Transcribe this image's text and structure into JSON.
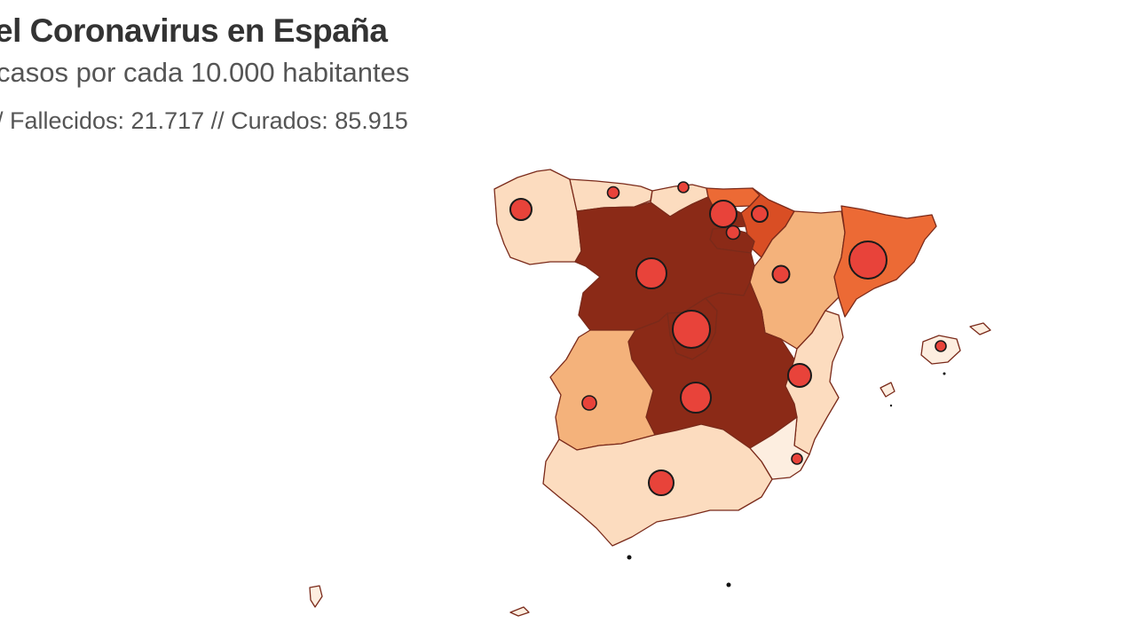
{
  "header": {
    "title": "el Coronavirus en España",
    "subtitle": "casos por cada 10.000 habitantes",
    "stats": "/ Fallecidos: 21.717 // Curados: 85.915"
  },
  "colors": {
    "lightest": "#fdeee0",
    "light": "#fcdcbf",
    "medium": "#f4b27b",
    "orange": "#ec6a35",
    "red_orange": "#d94e24",
    "dark": "#8b2a17",
    "bubble": "#e8433a"
  }
}
